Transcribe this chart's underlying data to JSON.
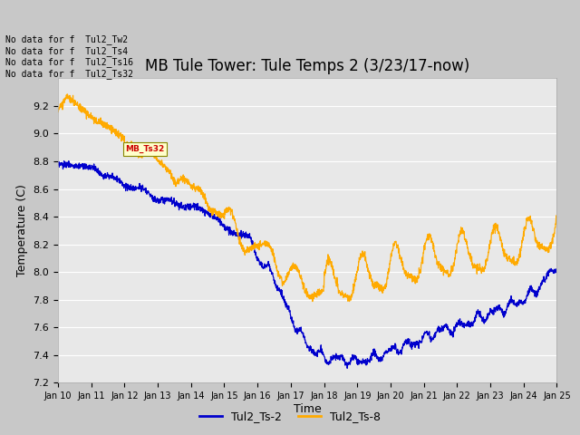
{
  "title": "MB Tule Tower: Tule Temps 2 (3/23/17-now)",
  "xlabel": "Time",
  "ylabel": "Temperature (C)",
  "ylim": [
    7.2,
    9.4
  ],
  "yticks": [
    7.2,
    7.4,
    7.6,
    7.8,
    8.0,
    8.2,
    8.4,
    8.6,
    8.8,
    9.0,
    9.2
  ],
  "xtick_labels": [
    "Jan 10",
    "Jan 11",
    "Jan 12",
    "Jan 13",
    "Jan 14",
    "Jan 15",
    "Jan 16",
    "Jan 17",
    "Jan 18",
    "Jan 19",
    "Jan 20",
    "Jan 21",
    "Jan 22",
    "Jan 23",
    "Jan 24",
    "Jan 25"
  ],
  "color_blue": "#0000cc",
  "color_orange": "#ffaa00",
  "legend_labels": [
    "Tul2_Ts-2",
    "Tul2_Ts-8"
  ],
  "no_data_lines": [
    "No data for f  Tul2_Tw2",
    "No data for f  Tul2_Ts4",
    "No data for f  Tul2_Ts16",
    "No data for f  Tul2_Ts32"
  ],
  "fig_bg": "#c8c8c8",
  "plot_bg": "#e8e8e8",
  "grid_color": "#ffffff",
  "title_fontsize": 12,
  "axis_label_fontsize": 9,
  "tick_fontsize": 8,
  "nodata_fontsize": 7,
  "legend_fontsize": 9
}
